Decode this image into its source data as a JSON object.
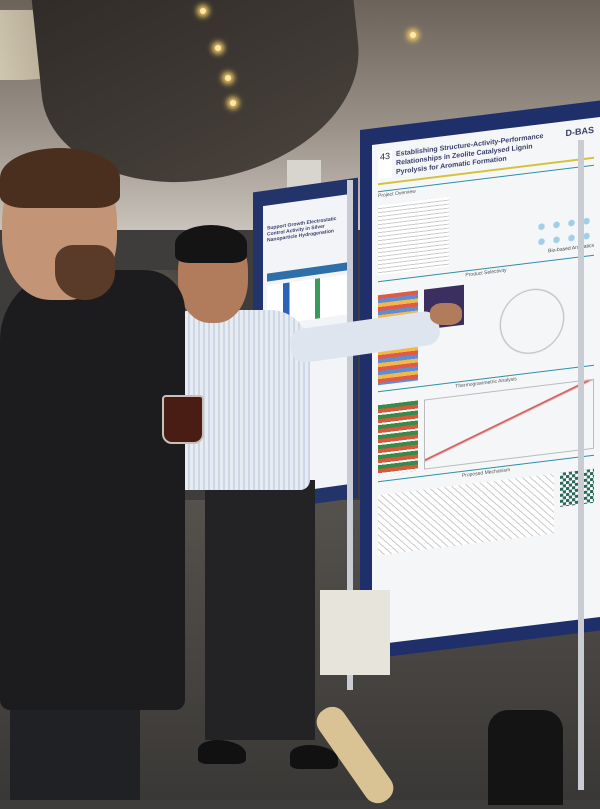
{
  "scene": "poster session",
  "main_poster": {
    "board_number": "43",
    "title": "Establishing Structure-Activity-Performance Relationships in Zeolite Catalysed Lignin Pyrolysis for Aromatic Formation",
    "logo_text": "D-BAS",
    "sections": {
      "overview": "Project Overview",
      "selectivity": "Product Selectivity",
      "tga": "Thermogravimetric Analysis",
      "mechanism": "Proposed Mechanism",
      "aromatics": "Bio-based Aromatics"
    },
    "colors": {
      "board": "#1e2f6a",
      "accent": "#2d8fa8"
    }
  },
  "side_poster": {
    "title": "Support Growth Electrostatic Control Activity in Silver Nanoparticle Hydrogenation"
  }
}
